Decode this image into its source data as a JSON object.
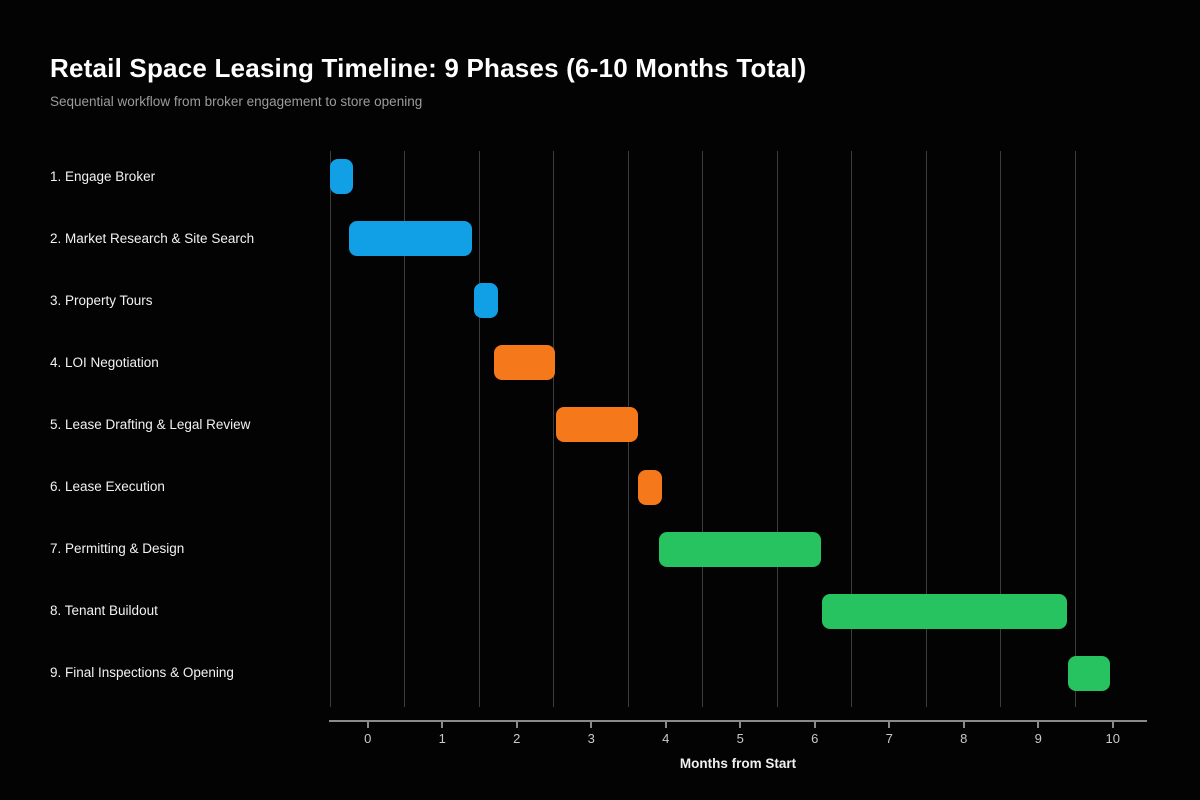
{
  "header": {
    "title": "Retail Space Leasing Timeline: 9 Phases (6-10 Months Total)",
    "subtitle": "Sequential workflow from broker engagement to store opening"
  },
  "chart_data": {
    "type": "gantt",
    "title": "Retail Space Leasing Timeline: 9 Phases (6-10 Months Total)",
    "subtitle": "Sequential workflow from broker engagement to store opening",
    "xlabel": "Months from Start",
    "xlim": [
      -0.52,
      10.46
    ],
    "x_ticks": [
      0,
      1,
      2,
      3,
      4,
      5,
      6,
      7,
      8,
      9,
      10
    ],
    "grid_x": [
      -0.5,
      0.5,
      1.5,
      2.5,
      3.5,
      4.5,
      5.5,
      6.5,
      7.5,
      8.5,
      9.5
    ],
    "grid_on": true,
    "legend": "none",
    "background_color": "#030303",
    "grid_color": "#3c3c3c",
    "axis_color": "#8a8a8a",
    "tick_label_color": "#c9c9c9",
    "label_color": "#f2f2f2",
    "subtitle_color": "#9c9c9c",
    "palette": {
      "blue": "#11a0e6",
      "orange": "#f5781a",
      "green": "#27c361"
    },
    "tasks": [
      {
        "label": "1. Engage Broker",
        "start": -0.5,
        "end": -0.2,
        "color_key": "blue"
      },
      {
        "label": "2. Market Research & Site Search",
        "start": -0.25,
        "end": 1.4,
        "color_key": "blue"
      },
      {
        "label": "3. Property Tours",
        "start": 1.43,
        "end": 1.75,
        "color_key": "blue"
      },
      {
        "label": "4. LOI Negotiation",
        "start": 1.7,
        "end": 2.52,
        "color_key": "orange"
      },
      {
        "label": "5. Lease Drafting & Legal Review",
        "start": 2.53,
        "end": 3.63,
        "color_key": "orange"
      },
      {
        "label": "6. Lease Execution",
        "start": 3.63,
        "end": 3.95,
        "color_key": "orange"
      },
      {
        "label": "7. Permitting & Design",
        "start": 3.91,
        "end": 6.09,
        "color_key": "green"
      },
      {
        "label": "8. Tenant Buildout",
        "start": 6.1,
        "end": 9.39,
        "color_key": "green"
      },
      {
        "label": "9. Final Inspections & Opening",
        "start": 9.4,
        "end": 9.96,
        "color_key": "green"
      }
    ]
  }
}
